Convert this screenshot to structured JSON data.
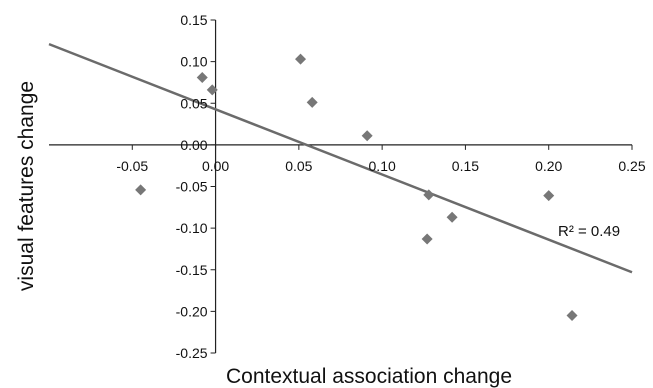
{
  "chart_data": {
    "type": "scatter",
    "xlabel": "Contextual association change",
    "ylabel": "visual features change",
    "xlim": [
      -0.1,
      0.25
    ],
    "ylim": [
      -0.25,
      0.15
    ],
    "x_ticks": [
      "-0.05",
      "0.00",
      "0.05",
      "0.10",
      "0.15",
      "0.20",
      "0.25"
    ],
    "y_ticks": [
      "0.15",
      "0.10",
      "0.05",
      "0.00",
      "-0.05",
      "-0.10",
      "-0.15",
      "-0.20",
      "-0.25"
    ],
    "grid": false,
    "legend": "none",
    "points": [
      {
        "x": -0.045,
        "y": -0.054
      },
      {
        "x": -0.008,
        "y": 0.081
      },
      {
        "x": -0.002,
        "y": 0.066
      },
      {
        "x": 0.051,
        "y": 0.103
      },
      {
        "x": 0.058,
        "y": 0.051
      },
      {
        "x": 0.091,
        "y": 0.011
      },
      {
        "x": 0.128,
        "y": -0.06
      },
      {
        "x": 0.127,
        "y": -0.113
      },
      {
        "x": 0.142,
        "y": -0.087
      },
      {
        "x": 0.2,
        "y": -0.061
      },
      {
        "x": 0.214,
        "y": -0.205
      }
    ],
    "trendline": {
      "type": "linear",
      "x_start": -0.1,
      "y_start": 0.121,
      "x_end": 0.25,
      "y_end": -0.153
    },
    "annotation": "R² = 0.49",
    "colors": {
      "marker": "#777777",
      "trendline": "#6b6b6b",
      "axis": "#222222"
    }
  }
}
